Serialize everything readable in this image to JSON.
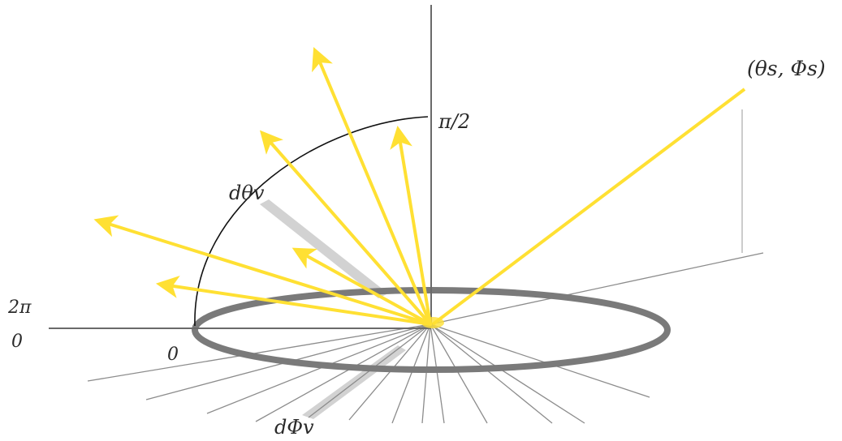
{
  "labels": {
    "sun_direction": "(θs, Φs)",
    "zenith": "π/2",
    "d_theta": "dθv",
    "d_phi": "dΦv",
    "two_pi": "2π",
    "zero_left": "0",
    "zero_ring": "0"
  },
  "colors": {
    "ray": "#ffe033",
    "ring": "#7a7a7a",
    "axis": "#6a6a6a",
    "spoke": "#8c8c8c",
    "wedge": "#d2d2d2",
    "arc": "#111111",
    "text": "#2a2a2a"
  }
}
